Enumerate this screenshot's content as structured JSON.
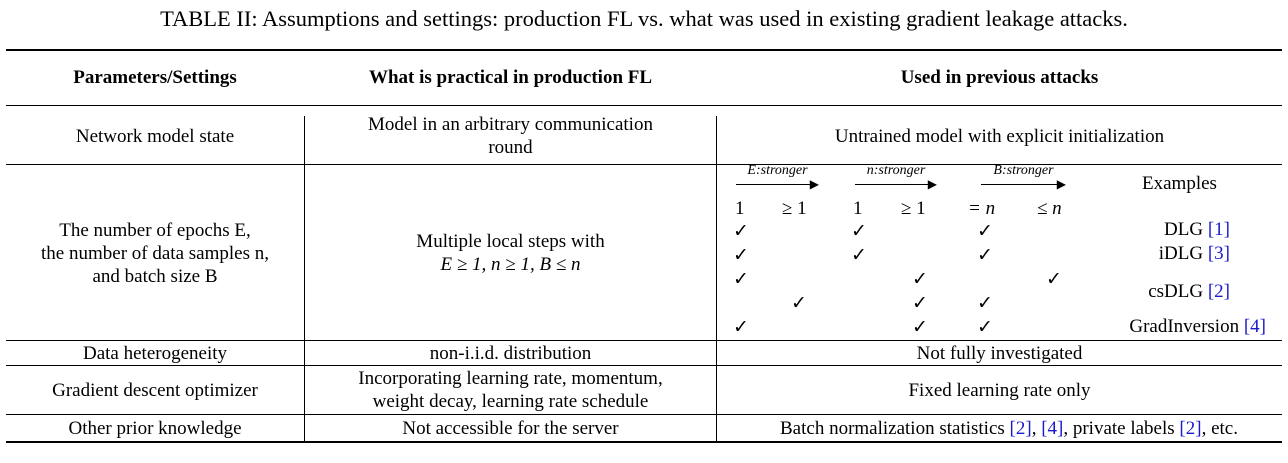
{
  "caption": "TABLE II: Assumptions and settings: production FL vs. what was used in existing gradient leakage attacks.",
  "headers": {
    "col1": "Parameters/Settings",
    "col2": "What is practical in production FL",
    "col3": "Used in previous attacks"
  },
  "rows": {
    "model_state": {
      "param": "Network model state",
      "practical_line1": "Model in an arbitrary communication",
      "practical_line2": "round",
      "previous": "Untrained model with explicit initialization"
    },
    "epochs": {
      "param_line1": "The number of epochs E,",
      "param_line2": "the number of data samples n,",
      "param_line3": "and batch size B",
      "practical_line1": "Multiple local steps with",
      "practical_line2": "E ≥ 1, n ≥ 1, B ≤ n",
      "arrows": [
        "E:stronger",
        "n:stronger",
        "B:stronger"
      ],
      "examples_label": "Examples",
      "subheaders": [
        "1",
        "≥ 1",
        "1",
        "≥ 1",
        "= n",
        "≤ n"
      ],
      "check_symbol": "✓",
      "examples": [
        {
          "name": "DLG",
          "ref": "[1]",
          "checks": [
            true,
            false,
            true,
            false,
            true,
            false
          ]
        },
        {
          "name": "iDLG",
          "ref": "[3]",
          "checks": [
            true,
            false,
            true,
            false,
            true,
            false
          ]
        },
        {
          "name": "csDLG",
          "ref": "[2]",
          "checks_a": [
            true,
            false,
            false,
            true,
            false,
            true
          ],
          "checks_b": [
            false,
            true,
            false,
            true,
            true,
            false
          ]
        },
        {
          "name": "GradInversion",
          "ref": "[4]",
          "checks": [
            true,
            false,
            false,
            true,
            true,
            false
          ]
        }
      ]
    },
    "heterogeneity": {
      "param": "Data heterogeneity",
      "practical": "non-i.i.d. distribution",
      "previous": "Not fully investigated"
    },
    "optimizer": {
      "param": "Gradient descent optimizer",
      "practical_line1": "Incorporating learning rate, momentum,",
      "practical_line2": "weight decay, learning rate schedule",
      "previous": "Fixed learning rate only"
    },
    "prior": {
      "param": "Other prior knowledge",
      "practical": "Not accessible for the server",
      "previous_pre": "Batch normalization statistics ",
      "ref_a": "[2]",
      "sep1": ", ",
      "ref_b": "[4]",
      "previous_mid": ", private labels ",
      "ref_c": "[2]",
      "previous_post": ", etc."
    }
  }
}
